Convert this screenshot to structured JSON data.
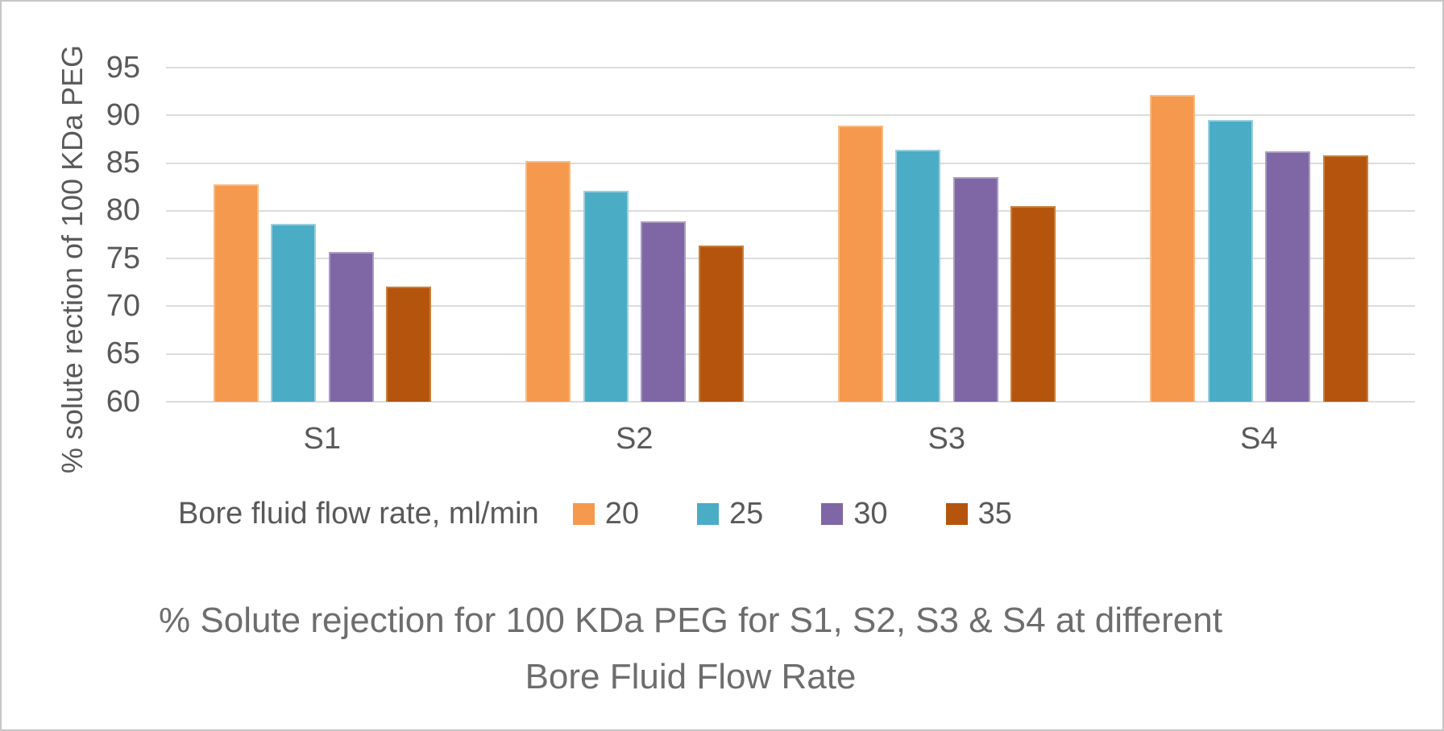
{
  "figure": {
    "background": "#ffffff",
    "border_color": "#c6c6c6",
    "text_gray": "#595959",
    "title_gray": "#6d6d6d",
    "gridline_color": "#dcdcdc"
  },
  "y_axis": {
    "title": "% solute rection of 100 KDa PEG",
    "tick_labels": [
      "95",
      "90",
      "85",
      "80",
      "75",
      "70",
      "65",
      "60"
    ]
  },
  "x_axis": {
    "labels": [
      "S1",
      "S2",
      "S3",
      "S4"
    ]
  },
  "legend": {
    "label": "Bore fluid flow rate, ml/min",
    "entries": [
      "20",
      "25",
      "30",
      "35"
    ]
  },
  "title": {
    "line1": "% Solute rejection for 100 KDa PEG for S1, S2, S3 & S4 at different",
    "line2": "Bore Fluid Flow Rate"
  },
  "chart_data": {
    "type": "bar",
    "title": "% Solute rejection for 100 KDa PEG for S1, S2, S3 & S4 at different Bore Fluid Flow Rate",
    "xlabel": "",
    "ylabel": "% solute rection of 100 KDa PEG",
    "categories": [
      "S1",
      "S2",
      "S3",
      "S4"
    ],
    "series": [
      {
        "name": "20",
        "color": "#f4994d",
        "edge": "#f8bb80",
        "values": [
          82.8,
          85.2,
          88.9,
          92.1
        ]
      },
      {
        "name": "25",
        "color": "#4bacc6",
        "edge": "#9bcfde",
        "values": [
          78.6,
          82.1,
          86.4,
          89.5
        ]
      },
      {
        "name": "30",
        "color": "#7f66a5",
        "edge": "#ab9ac4",
        "values": [
          75.7,
          78.9,
          83.5,
          86.2
        ]
      },
      {
        "name": "35",
        "color": "#b5550d",
        "edge": "#c8803c",
        "values": [
          72.1,
          76.4,
          80.5,
          85.8
        ]
      }
    ],
    "ylim": [
      60,
      95
    ],
    "ytick_step": 5,
    "grid": true,
    "legend_title": "Bore fluid flow rate, ml/min",
    "legend_position": "below"
  }
}
